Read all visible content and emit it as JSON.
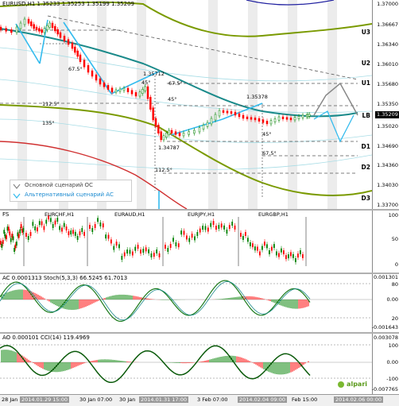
{
  "main_chart": {
    "header": "EURUSD,H1  1.35233 1.35253 1.35199 1.35209",
    "price_ticks": [
      "1.37000",
      "1.36667",
      "1.36340",
      "1.36010",
      "1.35680",
      "1.35350",
      "1.35020",
      "1.34690",
      "1.34360",
      "1.34030",
      "1.33700"
    ],
    "current_price": "1.35209",
    "levels": [
      "U3",
      "U2",
      "U1",
      "LB",
      "D1",
      "D2",
      "D3"
    ],
    "annotations": {
      "high_label": "1.35712",
      "mid_label": "1.35378",
      "low_label": "1.34787",
      "angles": [
        "67.5°",
        "45°",
        "67.5°",
        "112.5°",
        "45°",
        "135°",
        "45°",
        "67.5°",
        "112.5°"
      ]
    },
    "legend": {
      "main": "Основной сценарий ОС",
      "alt": "Альтернативный сценарий АС"
    }
  },
  "fx_panel": {
    "label": "FS",
    "symbols": [
      "EURCHF,H1",
      "EURAUD,H1",
      "EURJPY,H1",
      "EURGBP,H1"
    ],
    "ticks": [
      "100",
      "50",
      "0"
    ]
  },
  "ac_panel": {
    "header": "AC 0.0001313  Stoch(5,3,3) 66.5245 61.7013",
    "ticks": [
      "0.001301",
      "80",
      "0.00",
      "20",
      "-0.001643"
    ]
  },
  "ao_panel": {
    "header": "AO 0.000101  CCI(14) 119.4969",
    "ticks": [
      "0.003078",
      "100",
      "0.00",
      "-100",
      "-0.007765"
    ],
    "brand": "alpari"
  },
  "time_axis": {
    "labels": [
      "28 Jan",
      "2014.01.29 15:00",
      "30 Jan 07:00",
      "30 Jan",
      "2014.01.31 17:00",
      "3 Feb 07:00",
      "2014.02.04 09:00",
      "Feb 15:00",
      "2014.02.06 00:00"
    ]
  },
  "colors": {
    "teal": "#1a8a8a",
    "olive": "#7a9a00",
    "blue_scenario": "#33bbee",
    "gray_scenario": "#888888",
    "red_ma": "#d03030",
    "navy_ma": "#2020a0",
    "bull": "#008000",
    "bear": "#ff0000"
  }
}
